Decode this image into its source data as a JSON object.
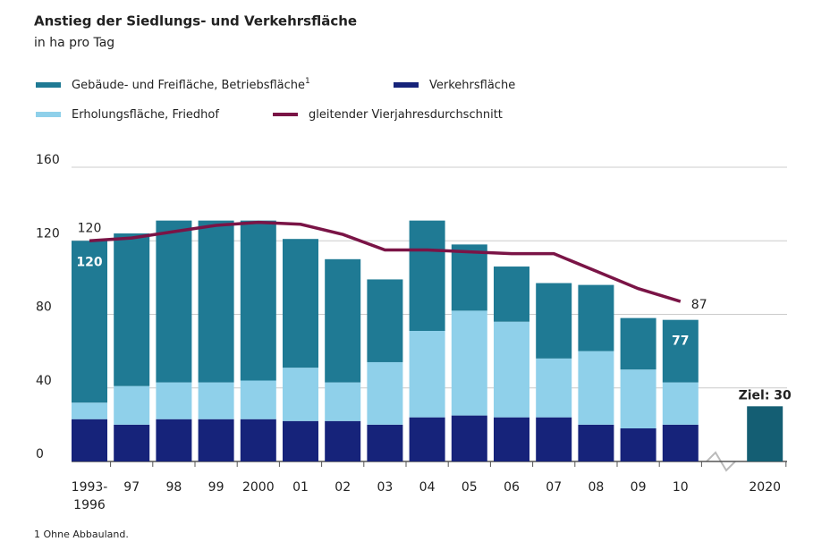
{
  "chart_data": {
    "type": "stacked_bar_line",
    "title": "Anstieg der Siedlungs- und Verkehrsfläche",
    "subtitle": "in ha pro Tag",
    "categories": [
      "1993-\n1996",
      "97",
      "98",
      "99",
      "2000",
      "01",
      "02",
      "03",
      "04",
      "05",
      "06",
      "07",
      "08",
      "09",
      "10",
      "2020"
    ],
    "series": [
      {
        "name": "Verkehrsfläche",
        "color": "#16237a",
        "values": [
          23,
          20,
          23,
          23,
          23,
          22,
          22,
          20,
          24,
          25,
          24,
          24,
          20,
          18,
          20,
          null
        ]
      },
      {
        "name": "Erholungsfläche, Friedhof",
        "color": "#8fd0ea",
        "values": [
          9,
          21,
          20,
          20,
          21,
          29,
          21,
          34,
          47,
          57,
          52,
          32,
          40,
          32,
          23,
          null
        ]
      },
      {
        "name": "Gebäude- und Freifläche, Betriebsfläche",
        "footnote_mark": "1",
        "color": "#1f7a94",
        "values": [
          88,
          83,
          88,
          88,
          87,
          70,
          67,
          45,
          60,
          36,
          30,
          41,
          36,
          28,
          34,
          null
        ]
      },
      {
        "name": "gleitender Vierjahresdurchschnitt",
        "type": "line",
        "color": "#7a1446",
        "values": [
          120,
          121.5,
          125,
          128.4,
          130,
          129,
          123.5,
          115,
          115,
          114,
          113,
          113,
          103.5,
          94,
          87,
          null
        ],
        "labels": [
          120,
          null,
          null,
          null,
          null,
          null,
          null,
          null,
          null,
          null,
          null,
          null,
          null,
          null,
          87,
          null
        ]
      }
    ],
    "total_labels": [
      120,
      null,
      null,
      null,
      null,
      null,
      null,
      null,
      null,
      null,
      null,
      null,
      null,
      null,
      77,
      null
    ],
    "target": {
      "value": 30,
      "label": "Ziel: 30",
      "color": "#145e73"
    },
    "ylim": [
      0,
      160
    ],
    "yticks": [
      0,
      40,
      80,
      120,
      160
    ],
    "grid": true,
    "footnote": {
      "mark": "1",
      "text": "Ohne Abbauland."
    }
  }
}
